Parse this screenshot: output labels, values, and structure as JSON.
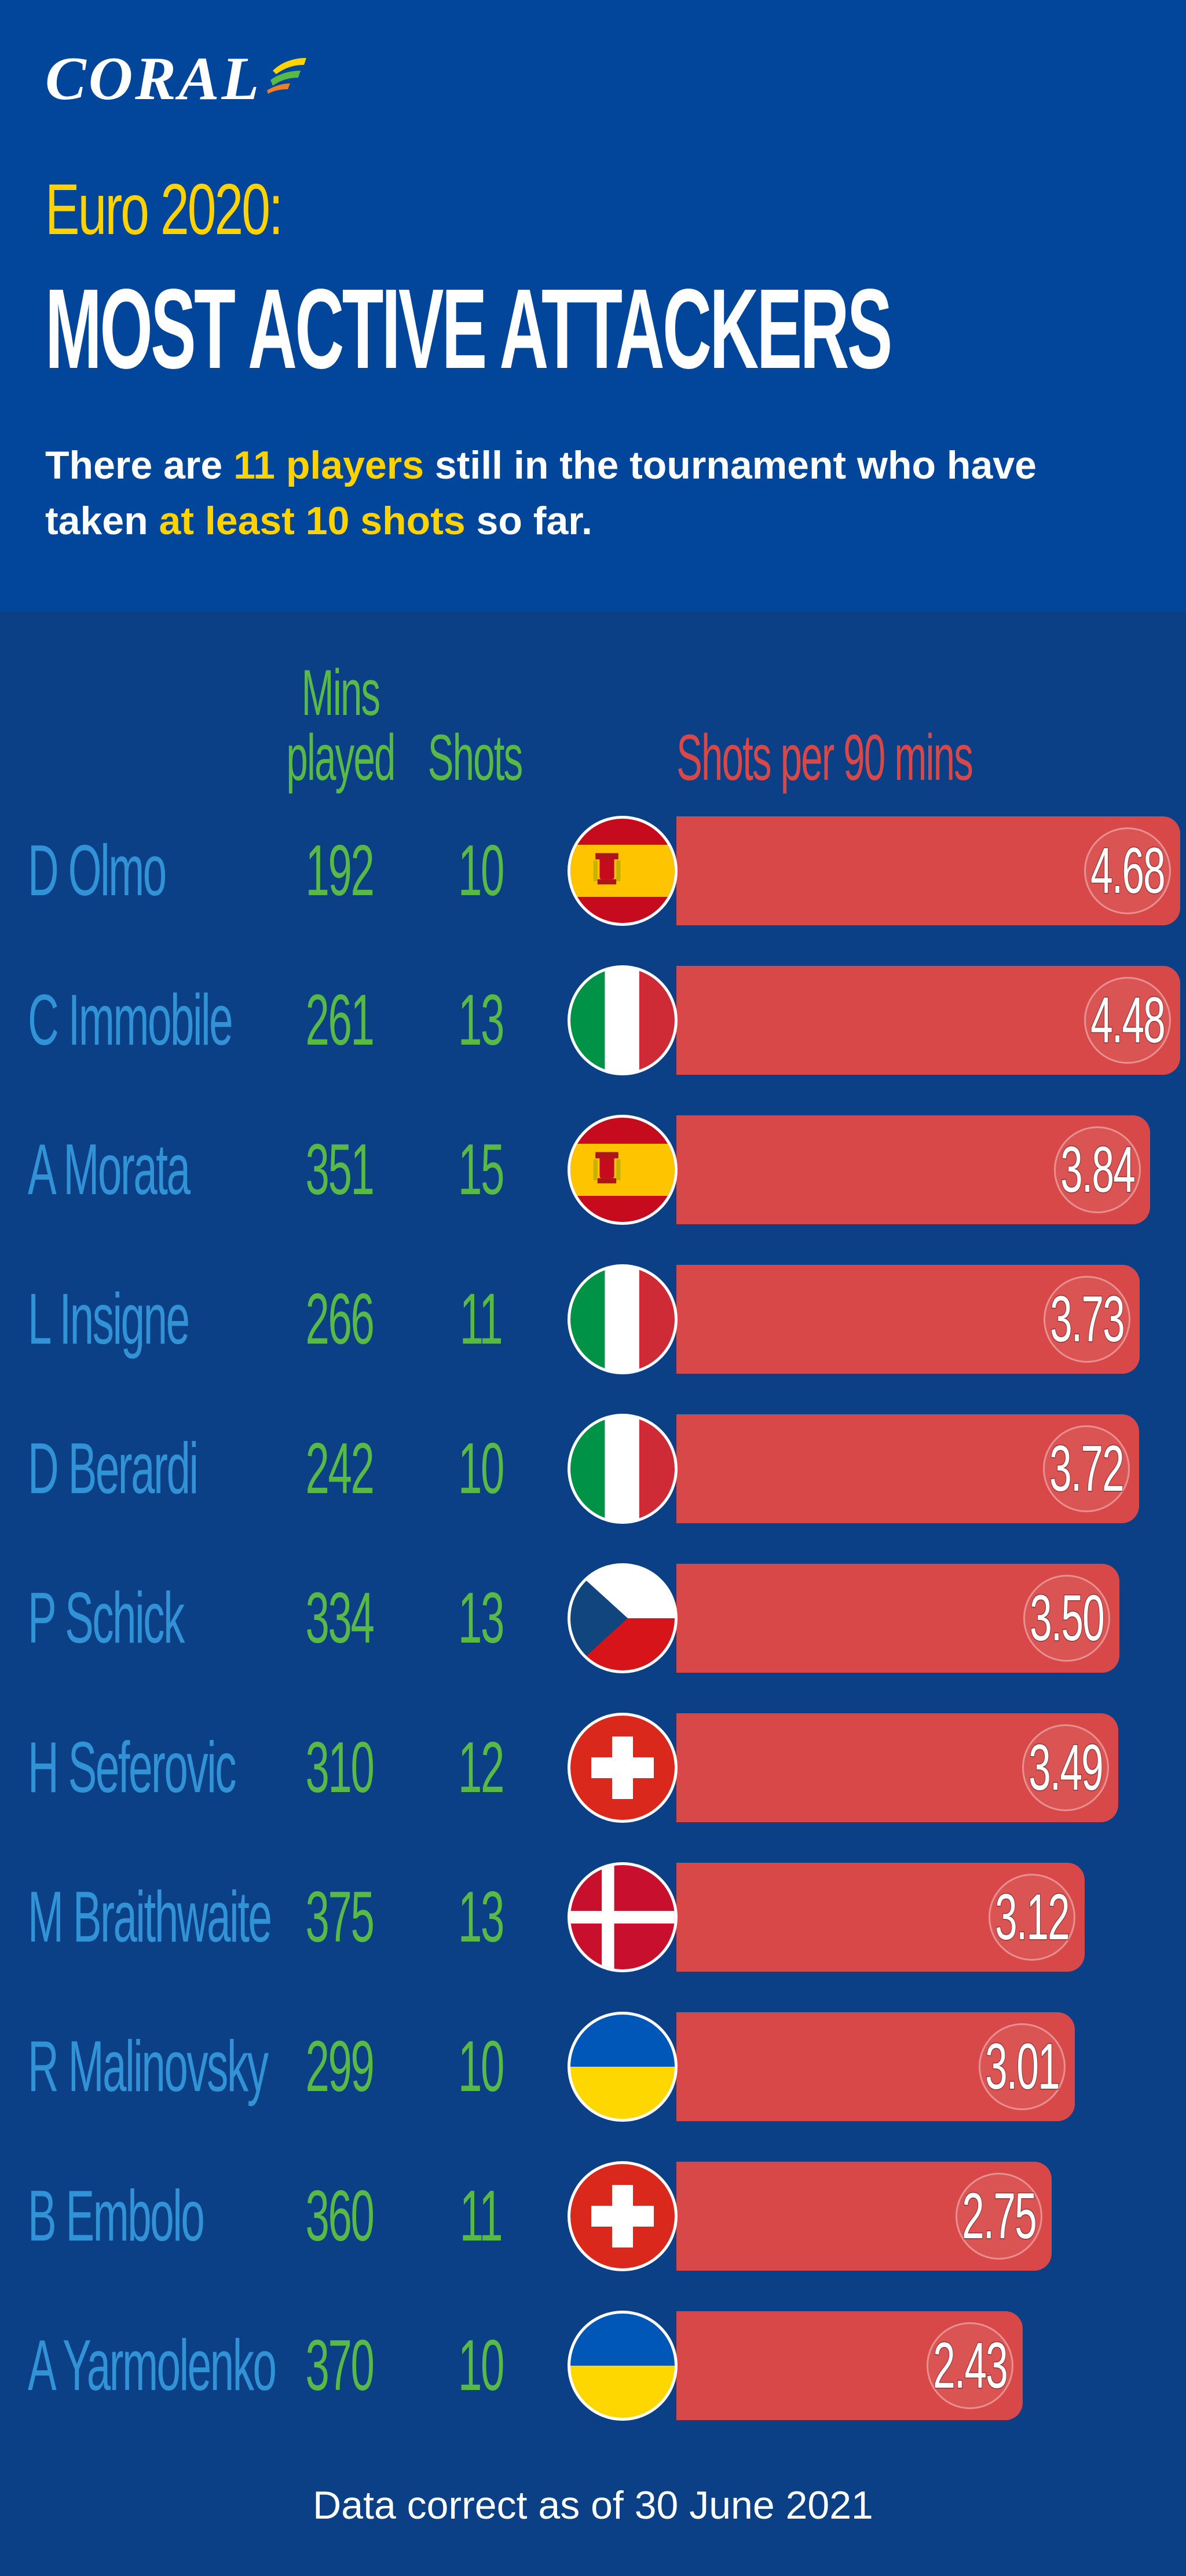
{
  "brand": {
    "name": "CORAL"
  },
  "header": {
    "title_line1": "Euro 2020:",
    "title_line2": "MOST ACTIVE ATTACKERS",
    "subtitle": {
      "part1": "There are ",
      "highlight1": "11 players",
      "part2": " still in the tournament who have taken ",
      "highlight2": "at least 10 shots",
      "part3": " so far."
    }
  },
  "colors": {
    "header_bg": "#01469b",
    "body_bg": "#0b3f86",
    "accent_yellow": "#ffd200",
    "name_blue": "#3192d6",
    "stat_green": "#58b947",
    "bar_red": "#d94848"
  },
  "chart_data": {
    "type": "table",
    "columns": {
      "player": "",
      "mins": "Mins played",
      "shots": "Shots",
      "rate": "Shots per 90 mins"
    },
    "rows": [
      {
        "player": "D Olmo",
        "mins": "192",
        "shots": "10",
        "country": "Spain",
        "flag": "spain-flag",
        "rate": "4.68"
      },
      {
        "player": "C Immobile",
        "mins": "261",
        "shots": "13",
        "country": "Italy",
        "flag": "italy-flag",
        "rate": "4.48"
      },
      {
        "player": "A Morata",
        "mins": "351",
        "shots": "15",
        "country": "Spain",
        "flag": "spain-flag",
        "rate": "3.84"
      },
      {
        "player": "L Insigne",
        "mins": "266",
        "shots": "11",
        "country": "Italy",
        "flag": "italy-flag",
        "rate": "3.73"
      },
      {
        "player": "D Berardi",
        "mins": "242",
        "shots": "10",
        "country": "Italy",
        "flag": "italy-flag",
        "rate": "3.72"
      },
      {
        "player": "P Schick",
        "mins": "334",
        "shots": "13",
        "country": "Czech Republic",
        "flag": "czech-flag",
        "rate": "3.50"
      },
      {
        "player": "H Seferovic",
        "mins": "310",
        "shots": "12",
        "country": "Switzerland",
        "flag": "switzerland-flag",
        "rate": "3.49"
      },
      {
        "player": "M Braithwaite",
        "mins": "375",
        "shots": "13",
        "country": "Denmark",
        "flag": "denmark-flag",
        "rate": "3.12"
      },
      {
        "player": "R Malinovsky",
        "mins": "299",
        "shots": "10",
        "country": "Ukraine",
        "flag": "ukraine-flag",
        "rate": "3.01"
      },
      {
        "player": "B Embolo",
        "mins": "360",
        "shots": "11",
        "country": "Switzerland",
        "flag": "switzerland-flag",
        "rate": "2.75"
      },
      {
        "player": "A Yarmolenko",
        "mins": "370",
        "shots": "10",
        "country": "Ukraine",
        "flag": "ukraine-flag",
        "rate": "2.43"
      }
    ]
  },
  "footnote": "Data correct as of 30 June 2021"
}
